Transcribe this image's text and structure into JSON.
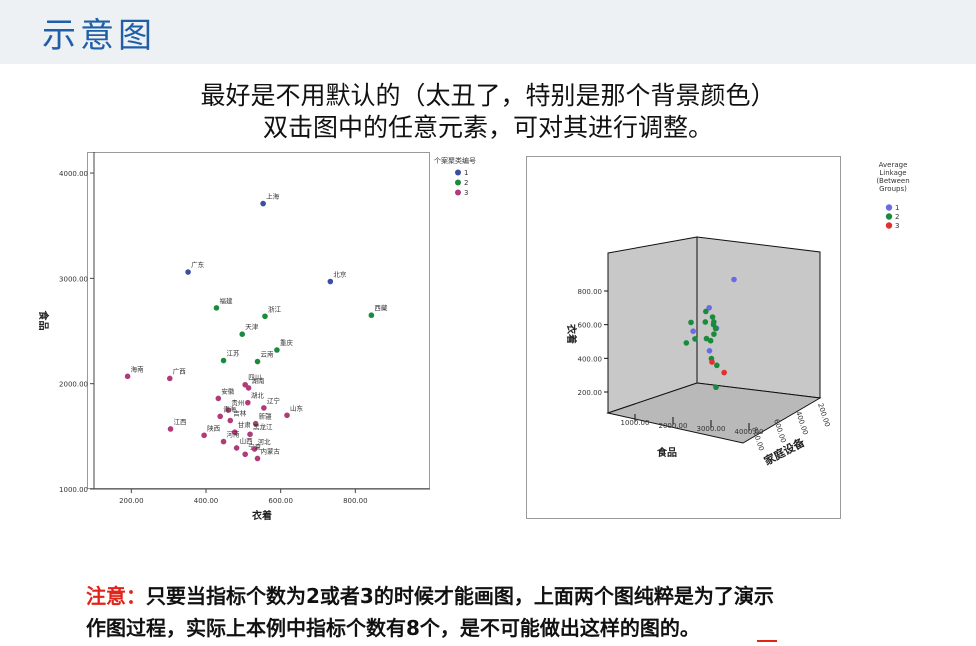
{
  "slide": {
    "title": "示意图",
    "subtitle_line1": "最好是不用默认的（太丑了，特别是那个背景颜色）",
    "subtitle_line2": "双击图中的任意元素，可对其进行调整。",
    "note_label": "注意：",
    "note_line1_rest": "只要当指标个数为2或者3的时候才能画图，上面两个图纯粹是为了演示",
    "note_line2": "作图过程，实际上本例中指标个数有8个，是不可能做出这样的图的。"
  },
  "chart_data": [
    {
      "type": "scatter",
      "title": "",
      "xlabel": "衣着",
      "ylabel": "食品",
      "xlim": [
        100,
        1000
      ],
      "ylim": [
        1000,
        4200
      ],
      "x_ticks": [
        "200.00",
        "400.00",
        "600.00",
        "800.00"
      ],
      "y_ticks": [
        "1000.00",
        "2000.00",
        "3000.00",
        "4000.00"
      ],
      "grid": false,
      "legend_title": "个案聚类编号",
      "legend_position": "top-right",
      "colors": {
        "1": "#3b4fa0",
        "2": "#1a8a3c",
        "3": "#b03a7a"
      },
      "series": [
        {
          "name": "1",
          "points": [
            {
              "label": "上海",
              "x": 553,
              "y": 3710
            },
            {
              "label": "广东",
              "x": 352,
              "y": 3060
            },
            {
              "label": "北京",
              "x": 733,
              "y": 2970
            }
          ]
        },
        {
          "name": "2",
          "points": [
            {
              "label": "福建",
              "x": 428,
              "y": 2720
            },
            {
              "label": "浙江",
              "x": 558,
              "y": 2640
            },
            {
              "label": "西藏",
              "x": 843,
              "y": 2650
            },
            {
              "label": "天津",
              "x": 497,
              "y": 2470
            },
            {
              "label": "重庆",
              "x": 590,
              "y": 2320
            },
            {
              "label": "江苏",
              "x": 447,
              "y": 2220
            },
            {
              "label": "云南",
              "x": 538,
              "y": 2210
            }
          ]
        },
        {
          "name": "3",
          "points": [
            {
              "label": "海南",
              "x": 190,
              "y": 2070
            },
            {
              "label": "广西",
              "x": 303,
              "y": 2050
            },
            {
              "label": "四川",
              "x": 505,
              "y": 1990
            },
            {
              "label": "湖南",
              "x": 514,
              "y": 1960
            },
            {
              "label": "安徽",
              "x": 433,
              "y": 1860
            },
            {
              "label": "湖北",
              "x": 512,
              "y": 1820
            },
            {
              "label": "辽宁",
              "x": 555,
              "y": 1770
            },
            {
              "label": "山东",
              "x": 617,
              "y": 1700
            },
            {
              "label": "贵州",
              "x": 460,
              "y": 1750
            },
            {
              "label": "青海",
              "x": 438,
              "y": 1690
            },
            {
              "label": "吉林",
              "x": 465,
              "y": 1650
            },
            {
              "label": "新疆",
              "x": 533,
              "y": 1620
            },
            {
              "label": "江西",
              "x": 305,
              "y": 1570
            },
            {
              "label": "陕西",
              "x": 395,
              "y": 1510
            },
            {
              "label": "甘肃",
              "x": 477,
              "y": 1540
            },
            {
              "label": "黑龙江",
              "x": 518,
              "y": 1520
            },
            {
              "label": "河南",
              "x": 447,
              "y": 1450
            },
            {
              "label": "山西",
              "x": 482,
              "y": 1390
            },
            {
              "label": "河北",
              "x": 530,
              "y": 1380
            },
            {
              "label": "宁夏",
              "x": 505,
              "y": 1330
            },
            {
              "label": "内蒙古",
              "x": 538,
              "y": 1290
            }
          ]
        }
      ]
    },
    {
      "type": "scatter",
      "title": "",
      "xlabel": "食品",
      "ylabel": "衣着",
      "zlabel": "家庭设备",
      "x_ticks": [
        "1000.00",
        "2000.00",
        "3000.00",
        "4000.00"
      ],
      "y_ticks": [
        "200.00",
        "400.00",
        "600.00",
        "800.00"
      ],
      "z_ticks": [
        "800.00",
        "600.00",
        "400.00",
        "200.00"
      ],
      "grid": false,
      "legend_title": "Average Linkage (Between Groups)",
      "legend_position": "top-right",
      "colors": {
        "1": "#6a6ae8",
        "2": "#1a8a3c",
        "3": "#e03030"
      },
      "series": [
        {
          "name": "1",
          "points": [
            {
              "x": 3600,
              "y": 840,
              "z": 550
            },
            {
              "x": 2900,
              "y": 680,
              "z": 470
            },
            {
              "x": 3100,
              "y": 560,
              "z": 500
            },
            {
              "x": 2300,
              "y": 520,
              "z": 560
            },
            {
              "x": 2900,
              "y": 430,
              "z": 480
            }
          ]
        },
        {
          "name": "2",
          "points": [
            {
              "x": 2700,
              "y": 640,
              "z": 560
            },
            {
              "x": 2400,
              "y": 600,
              "z": 400
            },
            {
              "x": 2800,
              "y": 600,
              "z": 450
            },
            {
              "x": 3100,
              "y": 610,
              "z": 420
            },
            {
              "x": 3200,
              "y": 580,
              "z": 380
            },
            {
              "x": 2900,
              "y": 560,
              "z": 600
            },
            {
              "x": 2600,
              "y": 520,
              "z": 330
            },
            {
              "x": 3000,
              "y": 500,
              "z": 420
            },
            {
              "x": 2200,
              "y": 470,
              "z": 450
            },
            {
              "x": 2700,
              "y": 480,
              "z": 580
            },
            {
              "x": 3150,
              "y": 420,
              "z": 300
            },
            {
              "x": 3300,
              "y": 380,
              "z": 320
            },
            {
              "x": 3200,
              "y": 240,
              "z": 390
            },
            {
              "x": 2850,
              "y": 600,
              "z": 620
            },
            {
              "x": 3050,
              "y": 530,
              "z": 470
            }
          ]
        },
        {
          "name": "3",
          "points": [
            {
              "x": 3000,
              "y": 370,
              "z": 460
            },
            {
              "x": 3300,
              "y": 300,
              "z": 540
            }
          ]
        }
      ]
    }
  ]
}
